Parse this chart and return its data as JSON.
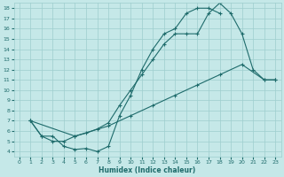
{
  "xlabel": "Humidex (Indice chaleur)",
  "xlim": [
    -0.5,
    23.5
  ],
  "ylim": [
    3.5,
    18.5
  ],
  "xticks": [
    0,
    1,
    2,
    3,
    4,
    5,
    6,
    7,
    8,
    9,
    10,
    11,
    12,
    13,
    14,
    15,
    16,
    17,
    18,
    19,
    20,
    21,
    22,
    23
  ],
  "yticks": [
    4,
    5,
    6,
    7,
    8,
    9,
    10,
    11,
    12,
    13,
    14,
    15,
    16,
    17,
    18
  ],
  "bg_color": "#c5e8e8",
  "grid_color": "#9ecece",
  "line_color": "#1e6b6b",
  "line1_x": [
    1,
    2,
    3,
    4,
    5,
    6,
    7,
    8,
    9,
    10,
    11,
    12,
    13,
    14,
    15,
    16,
    17,
    18
  ],
  "line1_y": [
    7,
    5.5,
    5.5,
    4.5,
    4.2,
    4.3,
    4.0,
    4.5,
    7.5,
    9.5,
    12,
    14,
    15.5,
    16,
    17.5,
    18,
    18,
    17.5
  ],
  "line2_x": [
    1,
    2,
    3,
    4,
    5,
    6,
    7,
    8,
    9,
    10,
    11,
    12,
    13,
    14,
    15,
    16,
    17,
    18,
    19,
    20,
    21,
    22,
    23
  ],
  "line2_y": [
    7,
    5.5,
    5,
    5,
    5.5,
    5.8,
    6.2,
    6.8,
    8.5,
    10,
    11.5,
    13,
    14.5,
    15.5,
    15.5,
    15.5,
    17.5,
    18.5,
    17.5,
    15.5,
    12,
    11,
    11
  ],
  "line3_x": [
    1,
    5,
    8,
    10,
    12,
    14,
    16,
    18,
    20,
    22,
    23
  ],
  "line3_y": [
    7,
    5.5,
    6.5,
    7.5,
    8.5,
    9.5,
    10.5,
    11.5,
    12.5,
    11,
    11
  ]
}
